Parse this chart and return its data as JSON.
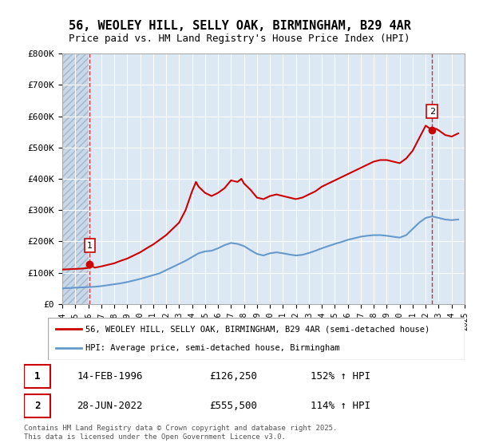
{
  "title_line1": "56, WEOLEY HILL, SELLY OAK, BIRMINGHAM, B29 4AR",
  "title_line2": "Price paid vs. HM Land Registry's House Price Index (HPI)",
  "ylabel": "",
  "xlabel": "",
  "background_color": "#dce9f5",
  "hatch_color": "#b0c8e0",
  "ylim": [
    0,
    800000
  ],
  "yticks": [
    0,
    100000,
    200000,
    300000,
    400000,
    500000,
    600000,
    700000,
    800000
  ],
  "ytick_labels": [
    "£0",
    "£100K",
    "£200K",
    "£300K",
    "£400K",
    "£500K",
    "£600K",
    "£700K",
    "£800K"
  ],
  "xmin": 1994,
  "xmax": 2025,
  "red_line_color": "#cc0000",
  "blue_line_color": "#6699cc",
  "marker1_x": 1996.12,
  "marker1_y": 126250,
  "marker1_label": "1",
  "marker2_x": 2022.5,
  "marker2_y": 555500,
  "marker2_label": "2",
  "legend_entry1": "56, WEOLEY HILL, SELLY OAK, BIRMINGHAM, B29 4AR (semi-detached house)",
  "legend_entry2": "HPI: Average price, semi-detached house, Birmingham",
  "annotation1_box": "1",
  "annotation1_date": "14-FEB-1996",
  "annotation1_price": "£126,250",
  "annotation1_hpi": "152% ↑ HPI",
  "annotation2_box": "2",
  "annotation2_date": "28-JUN-2022",
  "annotation2_price": "£555,500",
  "annotation2_hpi": "114% ↑ HPI",
  "footer": "Contains HM Land Registry data © Crown copyright and database right 2025.\nThis data is licensed under the Open Government Licence v3.0.",
  "red_x": [
    1994.0,
    1994.5,
    1995.0,
    1995.5,
    1996.0,
    1996.12,
    1996.5,
    1997.0,
    1997.5,
    1998.0,
    1998.5,
    1999.0,
    1999.5,
    2000.0,
    2000.5,
    2001.0,
    2001.5,
    2002.0,
    2002.5,
    2003.0,
    2003.5,
    2004.0,
    2004.3,
    2004.5,
    2005.0,
    2005.5,
    2006.0,
    2006.5,
    2007.0,
    2007.5,
    2007.8,
    2008.0,
    2008.5,
    2009.0,
    2009.5,
    2010.0,
    2010.5,
    2011.0,
    2011.5,
    2012.0,
    2012.5,
    2013.0,
    2013.5,
    2014.0,
    2014.5,
    2015.0,
    2015.5,
    2016.0,
    2016.5,
    2017.0,
    2017.5,
    2018.0,
    2018.5,
    2019.0,
    2019.5,
    2020.0,
    2020.5,
    2021.0,
    2021.5,
    2022.0,
    2022.5,
    2022.8,
    2023.0,
    2023.5,
    2024.0,
    2024.5
  ],
  "red_y": [
    110000,
    111000,
    112000,
    113000,
    115000,
    126250,
    116000,
    120000,
    125000,
    130000,
    138000,
    145000,
    155000,
    165000,
    178000,
    190000,
    205000,
    220000,
    240000,
    260000,
    300000,
    360000,
    390000,
    375000,
    355000,
    345000,
    355000,
    370000,
    395000,
    390000,
    400000,
    385000,
    365000,
    340000,
    335000,
    345000,
    350000,
    345000,
    340000,
    335000,
    340000,
    350000,
    360000,
    375000,
    385000,
    395000,
    405000,
    415000,
    425000,
    435000,
    445000,
    455000,
    460000,
    460000,
    455000,
    450000,
    465000,
    490000,
    530000,
    570000,
    555500,
    560000,
    555000,
    540000,
    535000,
    545000
  ],
  "blue_x": [
    1994.0,
    1994.5,
    1995.0,
    1995.5,
    1996.0,
    1996.5,
    1997.0,
    1997.5,
    1998.0,
    1998.5,
    1999.0,
    1999.5,
    2000.0,
    2000.5,
    2001.0,
    2001.5,
    2002.0,
    2002.5,
    2003.0,
    2003.5,
    2004.0,
    2004.5,
    2005.0,
    2005.5,
    2006.0,
    2006.5,
    2007.0,
    2007.5,
    2008.0,
    2008.5,
    2009.0,
    2009.5,
    2010.0,
    2010.5,
    2011.0,
    2011.5,
    2012.0,
    2012.5,
    2013.0,
    2013.5,
    2014.0,
    2014.5,
    2015.0,
    2015.5,
    2016.0,
    2016.5,
    2017.0,
    2017.5,
    2018.0,
    2018.5,
    2019.0,
    2019.5,
    2020.0,
    2020.5,
    2021.0,
    2021.5,
    2022.0,
    2022.5,
    2023.0,
    2023.5,
    2024.0,
    2024.5
  ],
  "blue_y": [
    50000,
    51000,
    52000,
    53000,
    54000,
    55000,
    57000,
    60000,
    63000,
    66000,
    70000,
    75000,
    80000,
    86000,
    92000,
    98000,
    108000,
    118000,
    128000,
    138000,
    150000,
    162000,
    168000,
    170000,
    178000,
    188000,
    195000,
    192000,
    185000,
    172000,
    160000,
    155000,
    162000,
    165000,
    162000,
    158000,
    155000,
    157000,
    163000,
    170000,
    178000,
    185000,
    192000,
    198000,
    205000,
    210000,
    215000,
    218000,
    220000,
    220000,
    218000,
    215000,
    212000,
    220000,
    240000,
    260000,
    275000,
    280000,
    275000,
    270000,
    268000,
    270000
  ]
}
